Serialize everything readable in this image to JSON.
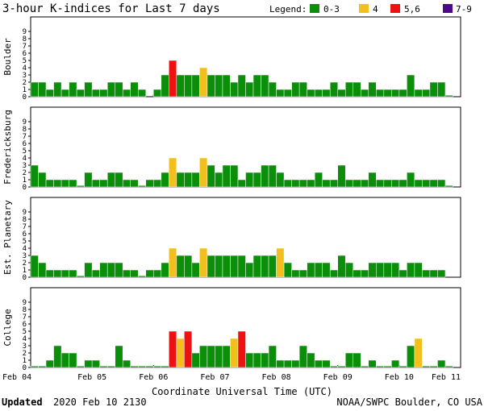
{
  "chart_data": {
    "type": "bar",
    "title": "3-hour K-indices for Last 7 days",
    "legend_title": "Legend:",
    "legend": [
      {
        "label": "0-3",
        "color": "#0b8f0b"
      },
      {
        "label": "4",
        "color": "#f2c01c"
      },
      {
        "label": "5,6",
        "color": "#ee1111"
      },
      {
        "label": "7-9",
        "color": "#4b0a8a"
      }
    ],
    "xlabel": "Coordinate Universal Time (UTC)",
    "x_tick_labels": [
      "Feb 04",
      "Feb 05",
      "Feb 06",
      "Feb 07",
      "Feb 08",
      "Feb 09",
      "Feb 10",
      "Feb 11"
    ],
    "y_ticks": [
      0,
      1,
      2,
      3,
      4,
      5,
      6,
      7,
      8,
      9
    ],
    "ylim": [
      0,
      9
    ],
    "bins_per_day": 8,
    "panels": [
      {
        "name": "Boulder",
        "values": [
          2,
          2,
          1,
          2,
          1,
          2,
          1,
          2,
          1,
          1,
          2,
          2,
          1,
          2,
          1,
          0,
          1,
          3,
          5,
          3,
          3,
          3,
          4,
          3,
          3,
          3,
          2,
          3,
          2,
          3,
          3,
          2,
          1,
          1,
          2,
          2,
          1,
          1,
          1,
          2,
          1,
          2,
          2,
          1,
          2,
          1,
          1,
          1,
          1,
          3,
          1,
          1,
          2,
          2,
          0.2
        ]
      },
      {
        "name": "Fredericksburg",
        "values": [
          3,
          2,
          1,
          1,
          1,
          1,
          0.2,
          2,
          1,
          1,
          2,
          2,
          1,
          1,
          0.2,
          1,
          1,
          2,
          4,
          2,
          2,
          2,
          4,
          3,
          2,
          3,
          3,
          1,
          2,
          2,
          3,
          3,
          2,
          1,
          1,
          1,
          1,
          2,
          1,
          1,
          3,
          1,
          1,
          1,
          2,
          1,
          1,
          1,
          1,
          2,
          1,
          1,
          1,
          1,
          0.2
        ]
      },
      {
        "name": "Est. Planetary",
        "values": [
          3,
          2,
          1,
          1,
          1,
          1,
          0.2,
          2,
          1,
          2,
          2,
          2,
          1,
          1,
          0.2,
          1,
          1,
          2,
          4,
          3,
          3,
          2,
          4,
          3,
          3,
          3,
          3,
          3,
          2,
          3,
          3,
          3,
          4,
          2,
          1,
          1,
          2,
          2,
          2,
          1,
          3,
          2,
          1,
          1,
          2,
          2,
          2,
          2,
          1,
          2,
          2,
          1,
          1,
          1
        ]
      },
      {
        "name": "College",
        "values": [
          0.2,
          0.2,
          1,
          3,
          2,
          2,
          0.2,
          1,
          1,
          0.2,
          0.2,
          3,
          1,
          0.2,
          0.2,
          0.2,
          0.2,
          0.2,
          5,
          4,
          5,
          2,
          3,
          3,
          3,
          3,
          4,
          5,
          2,
          2,
          2,
          3,
          1,
          1,
          1,
          3,
          2,
          1,
          1,
          0.2,
          0.2,
          2,
          2,
          0.2,
          1,
          0.2,
          0.2,
          1,
          0.2,
          3,
          4,
          0.2,
          0.2,
          1,
          0.2
        ]
      }
    ],
    "grid": false
  },
  "footer": {
    "updated_label": "Updated",
    "updated_value": "2020 Feb 10 2130",
    "credit": "NOAA/SWPC Boulder, CO USA"
  }
}
